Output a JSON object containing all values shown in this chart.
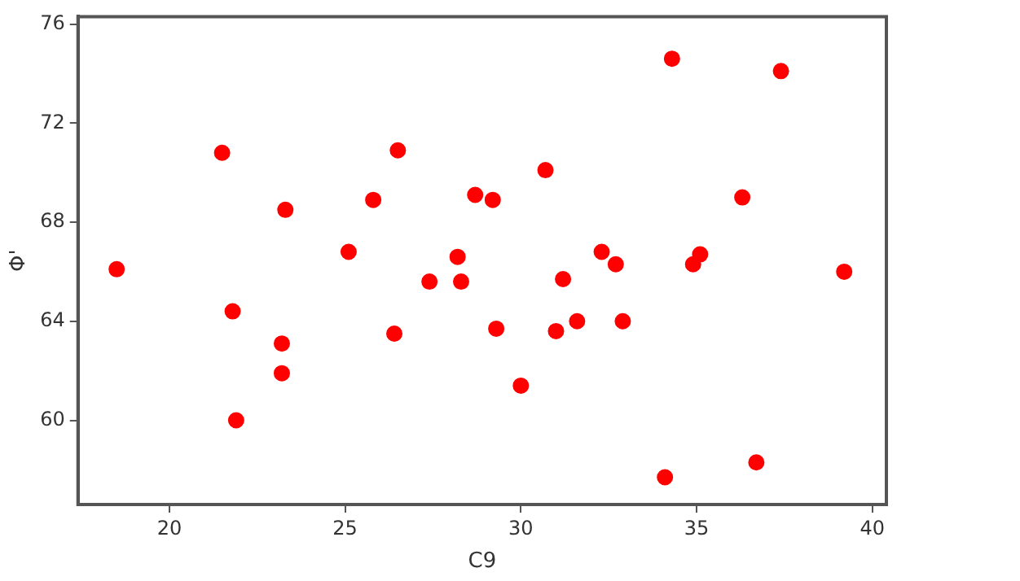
{
  "chart_data": {
    "type": "scatter",
    "xlabel": "C9",
    "ylabel": "Φ'",
    "x": [
      18.5,
      21.5,
      21.8,
      21.9,
      23.3,
      23.2,
      23.2,
      25.1,
      25.8,
      26.5,
      26.4,
      27.4,
      28.2,
      28.3,
      28.7,
      29.2,
      29.3,
      30.0,
      30.7,
      31.0,
      31.2,
      31.6,
      32.3,
      32.7,
      32.9,
      34.3,
      34.1,
      34.9,
      35.1,
      36.3,
      36.7,
      37.4,
      39.2
    ],
    "series": [
      {
        "color": "#ff0000",
        "values": [
          66.1,
          70.8,
          64.4,
          60.0,
          68.5,
          63.1,
          61.9,
          66.8,
          68.9,
          70.9,
          63.5,
          65.6,
          66.6,
          65.6,
          69.1,
          68.9,
          63.7,
          61.4,
          70.1,
          63.6,
          65.7,
          64.0,
          66.8,
          66.3,
          64.0,
          74.6,
          57.7,
          66.3,
          66.7,
          69.0,
          58.3,
          74.1,
          66.0
        ]
      }
    ],
    "xlim": [
      17.4,
      40.4
    ],
    "ylim": [
      56.6,
      76.3
    ],
    "xticks": [
      20,
      25,
      30,
      35,
      40
    ],
    "yticks": [
      60,
      64,
      68,
      72,
      76
    ],
    "grid": false,
    "legend": false,
    "marker": "circle"
  }
}
